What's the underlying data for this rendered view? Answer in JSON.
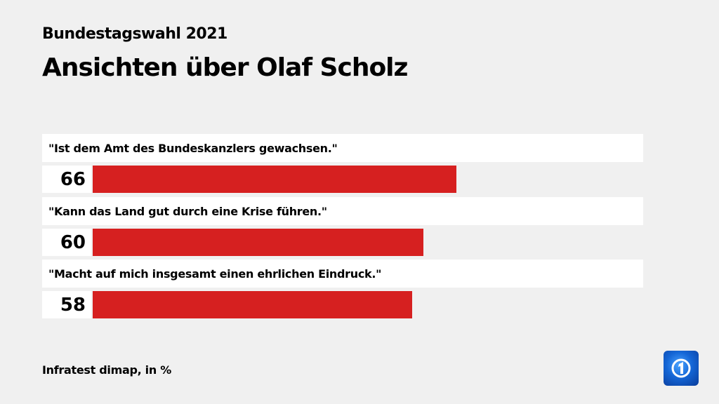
{
  "header": {
    "subtitle": "Bundestagswahl 2021",
    "title": "Ansichten über Olaf Scholz"
  },
  "chart_data": {
    "type": "bar",
    "orientation": "horizontal",
    "categories": [
      "\"Ist dem Amt des Bundeskanzlers gewachsen.\"",
      "\"Kann das Land gut durch eine Krise führen.\"",
      "\"Macht auf mich insgesamt einen ehrlichen Eindruck.\""
    ],
    "values": [
      66,
      60,
      58
    ],
    "xlim": [
      0,
      100
    ],
    "bar_color": "#d62020",
    "grid": false
  },
  "footer": {
    "source": "Infratest dimap, in %"
  },
  "logo": {
    "icon": "ard-logo-icon"
  }
}
